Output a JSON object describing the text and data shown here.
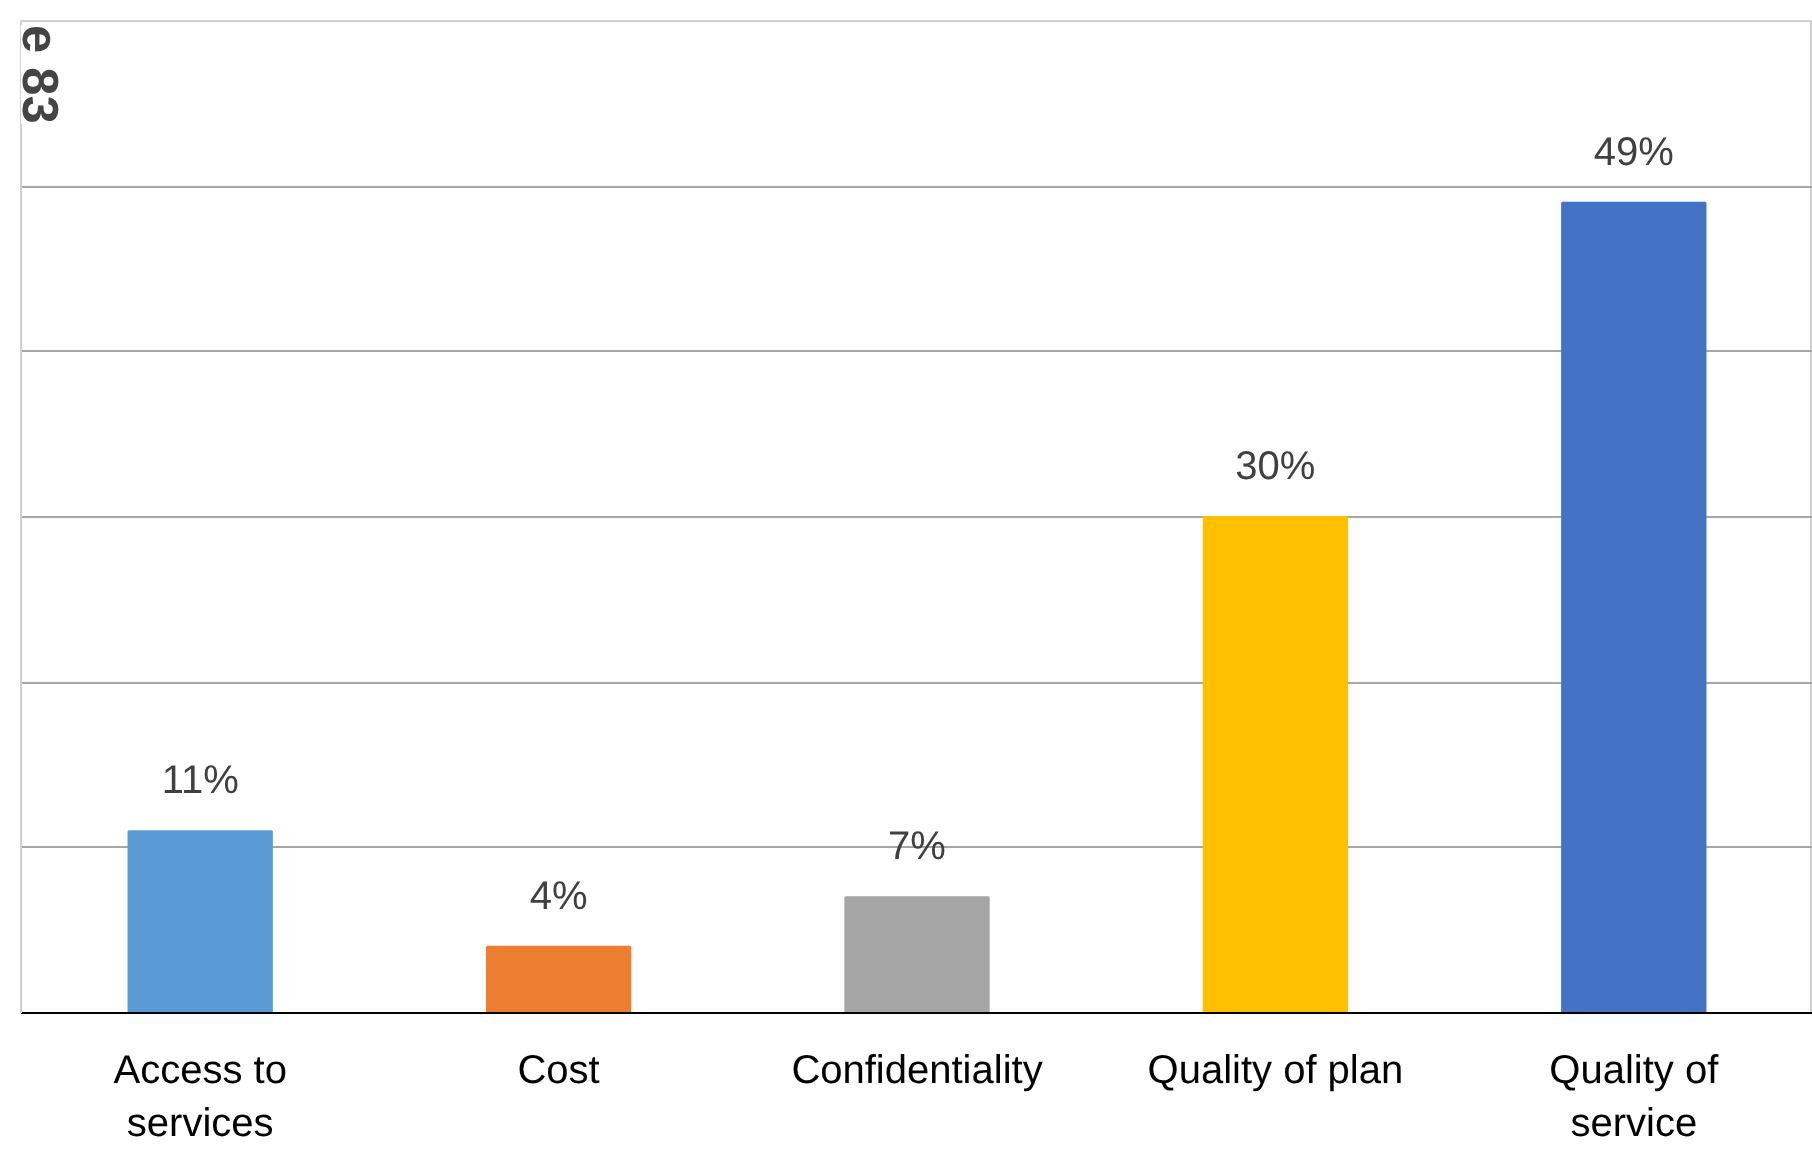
{
  "chart_data": {
    "type": "bar",
    "ylabel": "e 83",
    "categories": [
      "Access to services",
      "Cost",
      "Confidentiality",
      "Quality of plan",
      "Quality of service"
    ],
    "values": [
      11,
      4,
      7,
      30,
      49
    ],
    "colors": [
      "#5b9bd5",
      "#ed7d31",
      "#a5a5a5",
      "#ffc000",
      "#4472c4"
    ],
    "value_labels": [
      "11%",
      "4%",
      "7%",
      "30%",
      "49%"
    ],
    "ylim": [
      0,
      60
    ],
    "yticks": [
      0,
      10,
      20,
      30,
      40,
      50,
      60
    ],
    "grid": "y",
    "tick_labels": "x"
  }
}
